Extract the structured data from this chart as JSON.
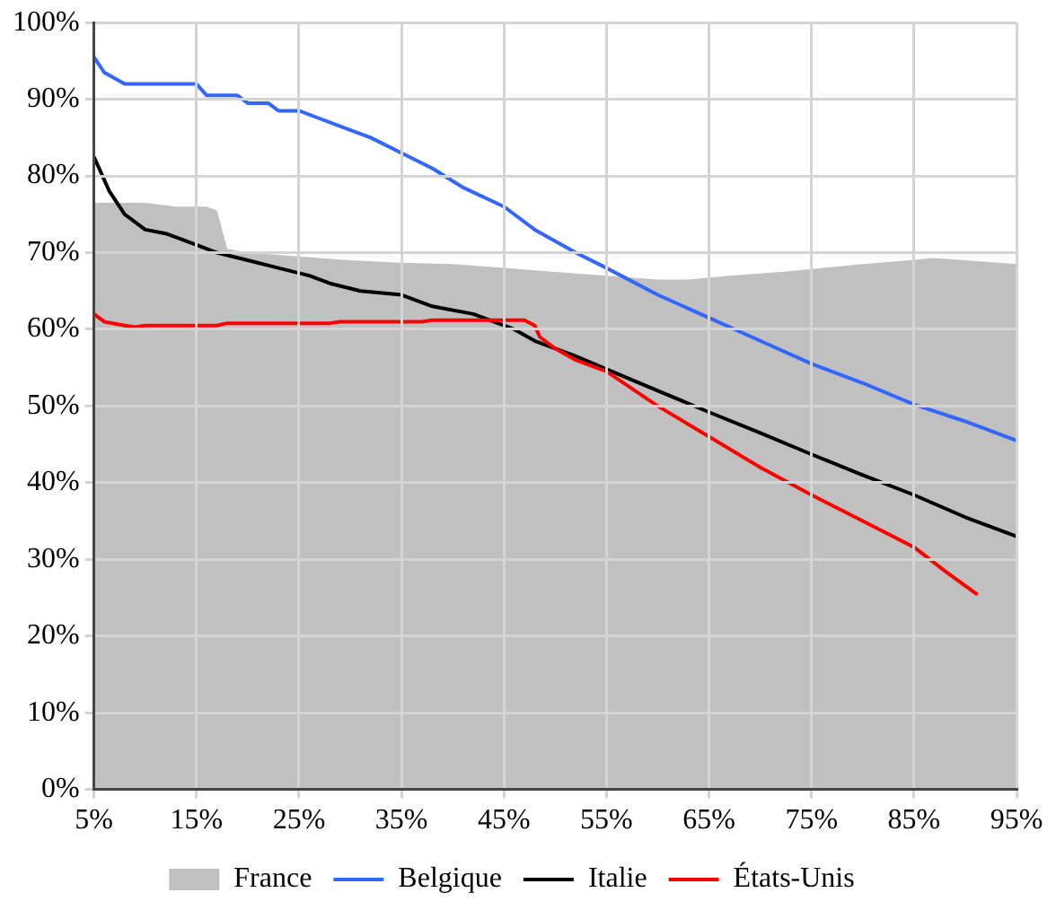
{
  "chart_data": {
    "type": "line",
    "xlim": [
      5,
      95
    ],
    "ylim": [
      0,
      100
    ],
    "xticks": [
      {
        "value": 5,
        "label": "5%"
      },
      {
        "value": 15,
        "label": "15%"
      },
      {
        "value": 25,
        "label": "25%"
      },
      {
        "value": 35,
        "label": "35%"
      },
      {
        "value": 45,
        "label": "45%"
      },
      {
        "value": 55,
        "label": "55%"
      },
      {
        "value": 65,
        "label": "65%"
      },
      {
        "value": 75,
        "label": "75%"
      },
      {
        "value": 85,
        "label": "85%"
      },
      {
        "value": 95,
        "label": "95%"
      }
    ],
    "yticks": [
      {
        "value": 0,
        "label": "0%"
      },
      {
        "value": 10,
        "label": "10%"
      },
      {
        "value": 20,
        "label": "20%"
      },
      {
        "value": 30,
        "label": "30%"
      },
      {
        "value": 40,
        "label": "40%"
      },
      {
        "value": 50,
        "label": "50%"
      },
      {
        "value": 60,
        "label": "60%"
      },
      {
        "value": 70,
        "label": "70%"
      },
      {
        "value": 80,
        "label": "80%"
      },
      {
        "value": 90,
        "label": "90%"
      },
      {
        "value": 100,
        "label": "100%"
      }
    ],
    "grid": true,
    "legend": "bottom",
    "marker": "none",
    "line_style": "solid",
    "series": [
      {
        "name": "France",
        "type": "area",
        "color": "#c0c0c0",
        "x": [
          5,
          10,
          13,
          16,
          17,
          18,
          20,
          25,
          30,
          35,
          40,
          45,
          50,
          55,
          60,
          63,
          67,
          72,
          80,
          87,
          90,
          95
        ],
        "values": [
          76.5,
          76.5,
          76,
          76,
          75.5,
          70.5,
          70,
          69.5,
          69,
          68.7,
          68.5,
          68,
          67.5,
          67,
          66.5,
          66.5,
          67,
          67.5,
          68.5,
          69.3,
          69,
          68.5
        ]
      },
      {
        "name": "Belgique",
        "color": "#3366ff",
        "x": [
          5,
          6,
          8,
          15,
          16,
          19,
          20,
          22,
          23,
          25,
          27,
          29,
          32,
          35,
          38,
          41,
          45,
          48,
          52,
          55,
          60,
          65,
          70,
          75,
          80,
          85,
          90,
          95
        ],
        "values": [
          95.5,
          93.5,
          92,
          92,
          90.5,
          90.5,
          89.5,
          89.5,
          88.5,
          88.5,
          87.5,
          86.5,
          85,
          83,
          81,
          78.5,
          76,
          73,
          70,
          68,
          64.5,
          61.5,
          58.5,
          55.5,
          53,
          50.2,
          48,
          45.5
        ]
      },
      {
        "name": "Italie",
        "color": "#000000",
        "x": [
          5,
          6.5,
          8,
          10,
          12,
          15,
          17,
          20,
          23,
          26,
          28,
          31,
          35,
          38,
          42,
          46,
          48,
          52,
          55,
          60,
          65,
          70,
          75,
          80,
          85,
          90,
          95
        ],
        "values": [
          82.5,
          78,
          75,
          73,
          72.5,
          71,
          70,
          69,
          68,
          67,
          66,
          65,
          64.5,
          63,
          62,
          60,
          58.5,
          56.5,
          54.8,
          52,
          49.2,
          46.5,
          43.7,
          41,
          38.4,
          35.5,
          33
        ]
      },
      {
        "name": "États-Unis",
        "color": "#ff0000",
        "x": [
          5,
          6,
          8,
          9,
          10,
          17,
          18,
          28,
          29,
          37,
          38,
          47,
          48,
          48.5,
          50,
          52,
          55,
          60,
          65,
          70,
          75,
          80,
          85,
          88,
          91.2
        ],
        "values": [
          62,
          61,
          60.5,
          60.3,
          60.5,
          60.5,
          60.8,
          60.8,
          61,
          61,
          61.2,
          61.2,
          60.5,
          59,
          57.5,
          56,
          54.5,
          50,
          46,
          42,
          38.4,
          35,
          31.6,
          28.5,
          25.4
        ]
      }
    ]
  }
}
